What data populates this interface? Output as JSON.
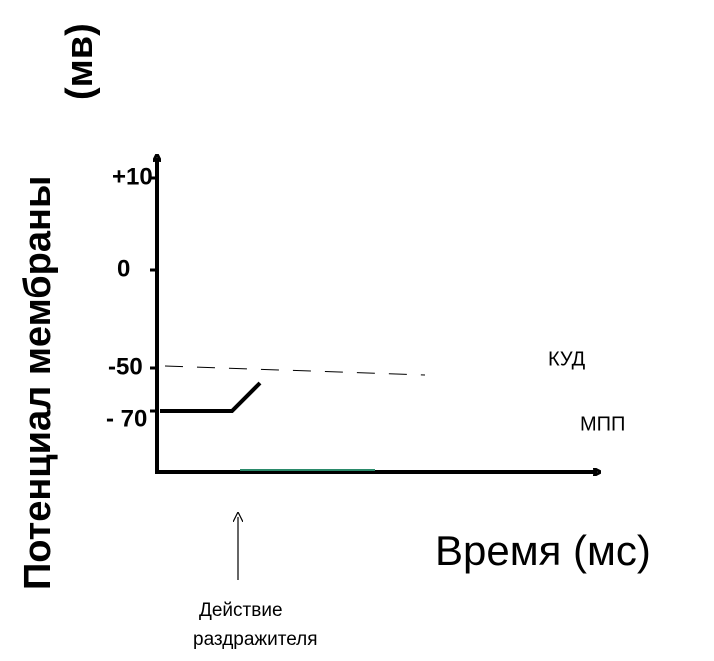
{
  "y_axis_label": {
    "line1": "Потенциал мембраны",
    "line2": "(мв)"
  },
  "x_axis_label": "Время (мс)",
  "y_tick_labels": [
    "+10",
    "0",
    "-50",
    "- 70"
  ],
  "line_labels": {
    "threshold": "КУД",
    "resting": "МПП"
  },
  "stimulus_label": {
    "line1": "Действие",
    "line2": "раздражителя"
  }
}
